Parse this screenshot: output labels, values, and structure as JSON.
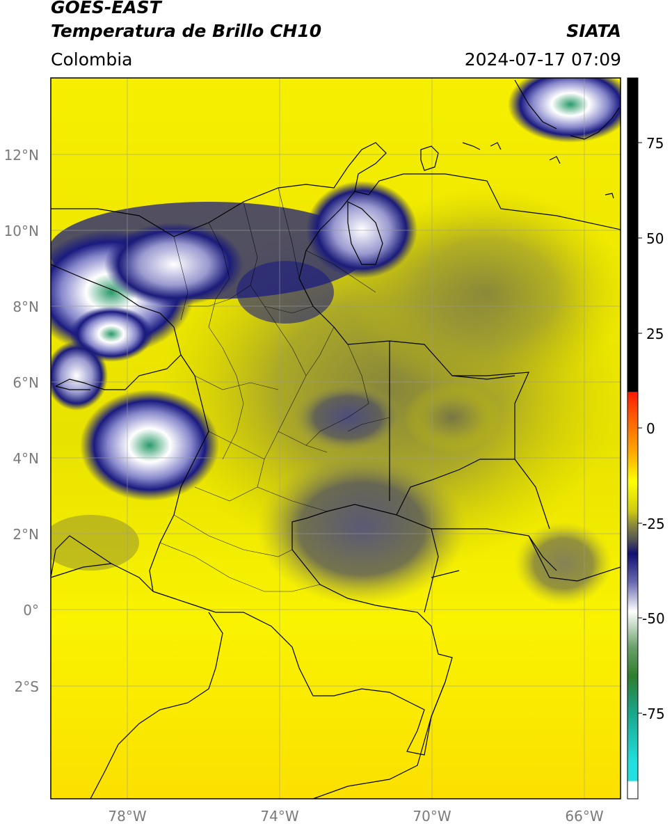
{
  "header": {
    "satellite": "GOES-EAST",
    "product": "Temperatura de Brillo CH10",
    "region": "Colombia",
    "brand": "SIATA",
    "datetime": "2024-07-17 07:09"
  },
  "map": {
    "lat_labels": [
      "12°N",
      "10°N",
      "8°N",
      "6°N",
      "4°N",
      "2°N",
      "0°",
      "2°S"
    ],
    "lon_labels": [
      "78°W",
      "74°W",
      "70°W",
      "66°W"
    ],
    "lat_range": [
      -5,
      14
    ],
    "lon_range": [
      -80,
      -65
    ]
  },
  "colorbar": {
    "ticks": [
      "75",
      "50",
      "25",
      "0",
      "-25",
      "-50",
      "-75"
    ],
    "unit": "",
    "colors": {
      "black": "#000000",
      "red": "#ff1a00",
      "orange": "#ff9900",
      "yellow": "#ffff00",
      "olive": "#8a8a3a",
      "gray": "#555555",
      "navy": "#101070",
      "white": "#ffffff",
      "green": "#2e7d2e",
      "teal": "#1aa58a",
      "cyan": "#22e0e0"
    }
  }
}
